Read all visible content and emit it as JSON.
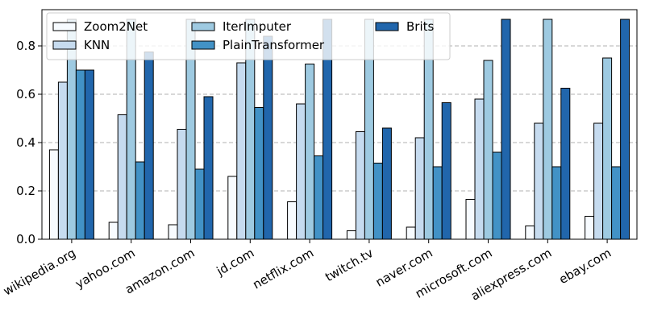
{
  "chart_data": {
    "type": "bar",
    "categories": [
      "wikipedia.org",
      "yahoo.com",
      "amazon.com",
      "jd.com",
      "netflix.com",
      "twitch.tv",
      "naver.com",
      "microsoft.com",
      "aliexpress.com",
      "ebay.com"
    ],
    "series": [
      {
        "name": "Zoom2Net",
        "color": "#f7fbff",
        "values": [
          0.37,
          0.07,
          0.06,
          0.26,
          0.155,
          0.035,
          0.05,
          0.165,
          0.055,
          0.095
        ]
      },
      {
        "name": "KNN",
        "color": "#c6dbef",
        "values": [
          0.65,
          0.515,
          0.455,
          0.73,
          0.56,
          0.445,
          0.42,
          0.58,
          0.48,
          0.48
        ]
      },
      {
        "name": "IterImputer",
        "color": "#9ecae1",
        "values": [
          0.91,
          0.91,
          0.91,
          0.91,
          0.725,
          0.91,
          0.91,
          0.74,
          0.91,
          0.75
        ]
      },
      {
        "name": "PlainTransformer",
        "color": "#4292c6",
        "values": [
          0.7,
          0.32,
          0.29,
          0.545,
          0.345,
          0.315,
          0.3,
          0.36,
          0.3,
          0.3
        ]
      },
      {
        "name": "Brits",
        "color": "#2166ac",
        "values": [
          0.7,
          0.775,
          0.59,
          0.84,
          0.91,
          0.46,
          0.565,
          0.91,
          0.625,
          0.91
        ]
      }
    ],
    "xlabel": "",
    "ylabel": "",
    "yticks": [
      "0.0",
      "0.2",
      "0.4",
      "0.6",
      "0.8"
    ],
    "ylim": [
      0,
      0.95
    ],
    "grid": "y-dashed",
    "legend_position": "top-left",
    "legend_columns": 3
  }
}
